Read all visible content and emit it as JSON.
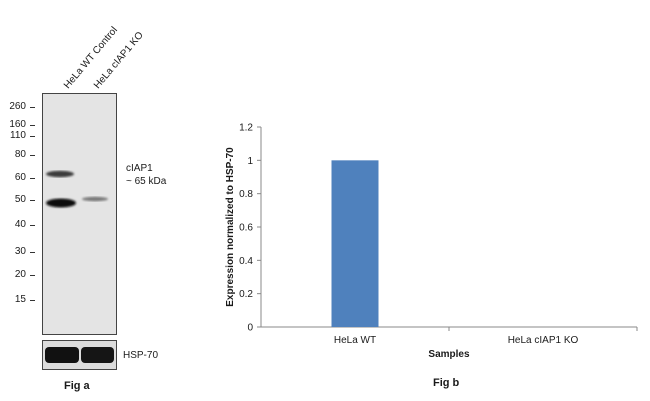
{
  "fig_a": {
    "lanes": [
      "HeLa WT Control",
      "HeLa cIAP1 KO"
    ],
    "mw_markers": [
      "260",
      "160",
      "110",
      "80",
      "60",
      "50",
      "40",
      "30",
      "20",
      "15"
    ],
    "target_label": "cIAP1",
    "target_size": "~ 65 kDa",
    "loading_label": "HSP-70",
    "caption": "Fig a"
  },
  "fig_b": {
    "caption": "Fig b"
  },
  "chart_data": {
    "type": "bar",
    "categories": [
      "HeLa WT",
      "HeLa cIAP1 KO"
    ],
    "values": [
      1.0,
      0.0
    ],
    "xlabel": "Samples",
    "ylabel": "Expression  normalized to HSP-70",
    "ylim": [
      0,
      1.2
    ],
    "yticks": [
      "0",
      "0.2",
      "0.4",
      "0.6",
      "0.8",
      "1",
      "1.2"
    ],
    "grid": false,
    "bar_color": "#4f81bd"
  }
}
